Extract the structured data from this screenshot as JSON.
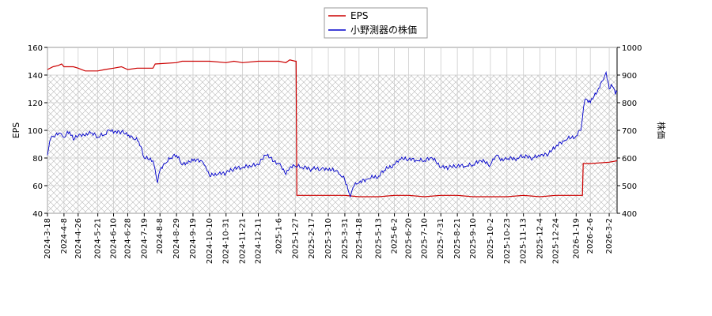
{
  "chart_data": {
    "type": "line",
    "title": "",
    "xlabel": "",
    "ylabel_left": "EPS",
    "ylabel_right": "株価",
    "ylim_left": [
      40,
      160
    ],
    "ylim_right": [
      400,
      1000
    ],
    "yticks_left": [
      "40",
      "60",
      "80",
      "100",
      "120",
      "140",
      "160"
    ],
    "yticks_right": [
      "400",
      "500",
      "600",
      "700",
      "800",
      "900",
      "1000"
    ],
    "grid": true,
    "legend_position": "top-center",
    "x_tick_labels": [
      "2024-3-18",
      "2024-4-8",
      "2024-4-26",
      "2024-5-21",
      "2024-6-10",
      "2024-6-28",
      "2024-7-19",
      "2024-8-8",
      "2024-8-29",
      "2024-9-19",
      "2024-10-10",
      "2024-10-31",
      "2024-11-21",
      "2024-12-11",
      "2025-1-6",
      "2025-1-27",
      "2025-2-17",
      "2025-3-10",
      "2025-3-31",
      "2025-4-18",
      "2025-5-13",
      "2025-6-2",
      "2025-6-20",
      "2025-7-10",
      "2025-7-31",
      "2025-8-21",
      "2025-9-10",
      "2025-10-2",
      "2025-10-23",
      "2025-11-13",
      "2025-12-4",
      "2025-12-24",
      "2026-1-19",
      "2026-2-6",
      "2026-3-2"
    ],
    "series": [
      {
        "name": "EPS",
        "axis": "left",
        "color": "#cc0000",
        "points": [
          [
            "2024-3-18",
            144
          ],
          [
            "2024-3-25",
            146
          ],
          [
            "2024-4-1",
            147
          ],
          [
            "2024-4-5",
            148
          ],
          [
            "2024-4-8",
            146
          ],
          [
            "2024-4-20",
            146
          ],
          [
            "2024-4-26",
            145
          ],
          [
            "2024-5-5",
            143
          ],
          [
            "2024-5-21",
            143
          ],
          [
            "2024-5-30",
            144
          ],
          [
            "2024-6-10",
            145
          ],
          [
            "2024-6-20",
            146
          ],
          [
            "2024-6-28",
            144
          ],
          [
            "2024-7-10",
            145
          ],
          [
            "2024-7-19",
            145
          ],
          [
            "2024-7-30",
            145
          ],
          [
            "2024-8-2",
            148
          ],
          [
            "2024-8-29",
            149
          ],
          [
            "2024-9-5",
            150
          ],
          [
            "2024-9-19",
            150
          ],
          [
            "2024-10-10",
            150
          ],
          [
            "2024-10-31",
            149
          ],
          [
            "2024-11-10",
            150
          ],
          [
            "2024-11-21",
            149
          ],
          [
            "2024-12-11",
            150
          ],
          [
            "2025-1-6",
            150
          ],
          [
            "2025-1-15",
            149
          ],
          [
            "2025-1-20",
            151
          ],
          [
            "2025-1-27",
            150
          ],
          [
            "2025-1-28",
            150
          ],
          [
            "2025-1-29",
            53
          ],
          [
            "2025-2-17",
            53
          ],
          [
            "2025-3-10",
            53
          ],
          [
            "2025-3-31",
            53
          ],
          [
            "2025-4-18",
            52
          ],
          [
            "2025-5-13",
            52
          ],
          [
            "2025-6-2",
            53
          ],
          [
            "2025-6-20",
            53
          ],
          [
            "2025-7-10",
            52
          ],
          [
            "2025-7-31",
            53
          ],
          [
            "2025-8-21",
            53
          ],
          [
            "2025-9-10",
            52
          ],
          [
            "2025-10-2",
            52
          ],
          [
            "2025-10-23",
            52
          ],
          [
            "2025-11-13",
            53
          ],
          [
            "2025-12-4",
            52
          ],
          [
            "2025-12-24",
            53
          ],
          [
            "2026-1-19",
            53
          ],
          [
            "2026-1-27",
            53
          ],
          [
            "2026-1-28",
            76
          ],
          [
            "2026-2-6",
            76
          ],
          [
            "2026-3-2",
            77
          ],
          [
            "2026-3-12",
            78
          ]
        ]
      },
      {
        "name": "小野測器の株価",
        "axis": "right",
        "color": "#0000cc",
        "points": [
          [
            "2024-3-18",
            610
          ],
          [
            "2024-3-22",
            670
          ],
          [
            "2024-3-28",
            680
          ],
          [
            "2024-4-3",
            690
          ],
          [
            "2024-4-8",
            675
          ],
          [
            "2024-4-15",
            695
          ],
          [
            "2024-4-20",
            665
          ],
          [
            "2024-4-26",
            680
          ],
          [
            "2024-5-5",
            680
          ],
          [
            "2024-5-12",
            690
          ],
          [
            "2024-5-21",
            675
          ],
          [
            "2024-5-30",
            685
          ],
          [
            "2024-6-5",
            700
          ],
          [
            "2024-6-10",
            690
          ],
          [
            "2024-6-20",
            695
          ],
          [
            "2024-6-28",
            680
          ],
          [
            "2024-7-5",
            670
          ],
          [
            "2024-7-12",
            660
          ],
          [
            "2024-7-19",
            600
          ],
          [
            "2024-7-30",
            590
          ],
          [
            "2024-8-5",
            510
          ],
          [
            "2024-8-8",
            555
          ],
          [
            "2024-8-15",
            580
          ],
          [
            "2024-8-22",
            600
          ],
          [
            "2024-8-29",
            610
          ],
          [
            "2024-9-5",
            575
          ],
          [
            "2024-9-12",
            580
          ],
          [
            "2024-9-19",
            590
          ],
          [
            "2024-9-30",
            590
          ],
          [
            "2024-10-5",
            570
          ],
          [
            "2024-10-10",
            535
          ],
          [
            "2024-10-20",
            540
          ],
          [
            "2024-10-31",
            545
          ],
          [
            "2024-11-10",
            560
          ],
          [
            "2024-11-21",
            565
          ],
          [
            "2024-12-1",
            570
          ],
          [
            "2024-12-11",
            575
          ],
          [
            "2024-12-20",
            610
          ],
          [
            "2025-1-6",
            580
          ],
          [
            "2025-1-15",
            540
          ],
          [
            "2025-1-20",
            565
          ],
          [
            "2025-1-27",
            570
          ],
          [
            "2025-2-5",
            565
          ],
          [
            "2025-2-17",
            560
          ],
          [
            "2025-3-1",
            560
          ],
          [
            "2025-3-10",
            555
          ],
          [
            "2025-3-20",
            555
          ],
          [
            "2025-3-25",
            540
          ],
          [
            "2025-3-31",
            520
          ],
          [
            "2025-4-4",
            485
          ],
          [
            "2025-4-7",
            460
          ],
          [
            "2025-4-12",
            500
          ],
          [
            "2025-4-18",
            510
          ],
          [
            "2025-4-30",
            525
          ],
          [
            "2025-5-13",
            535
          ],
          [
            "2025-5-20",
            555
          ],
          [
            "2025-6-2",
            575
          ],
          [
            "2025-6-10",
            595
          ],
          [
            "2025-6-20",
            595
          ],
          [
            "2025-7-1",
            590
          ],
          [
            "2025-7-10",
            590
          ],
          [
            "2025-7-20",
            600
          ],
          [
            "2025-7-31",
            565
          ],
          [
            "2025-8-10",
            565
          ],
          [
            "2025-8-21",
            570
          ],
          [
            "2025-9-1",
            570
          ],
          [
            "2025-9-10",
            575
          ],
          [
            "2025-9-20",
            590
          ],
          [
            "2025-10-2",
            575
          ],
          [
            "2025-10-10",
            610
          ],
          [
            "2025-10-15",
            590
          ],
          [
            "2025-10-23",
            595
          ],
          [
            "2025-11-5",
            600
          ],
          [
            "2025-11-13",
            605
          ],
          [
            "2025-11-25",
            600
          ],
          [
            "2025-12-4",
            605
          ],
          [
            "2025-12-15",
            615
          ],
          [
            "2025-12-24",
            640
          ],
          [
            "2026-1-5",
            665
          ],
          [
            "2026-1-19",
            680
          ],
          [
            "2026-1-25",
            700
          ],
          [
            "2026-1-30",
            810
          ],
          [
            "2026-2-6",
            800
          ],
          [
            "2026-2-15",
            840
          ],
          [
            "2026-2-22",
            880
          ],
          [
            "2026-2-26",
            910
          ],
          [
            "2026-3-2",
            850
          ],
          [
            "2026-3-6",
            860
          ],
          [
            "2026-3-10",
            830
          ],
          [
            "2026-3-12",
            840
          ]
        ]
      }
    ]
  }
}
